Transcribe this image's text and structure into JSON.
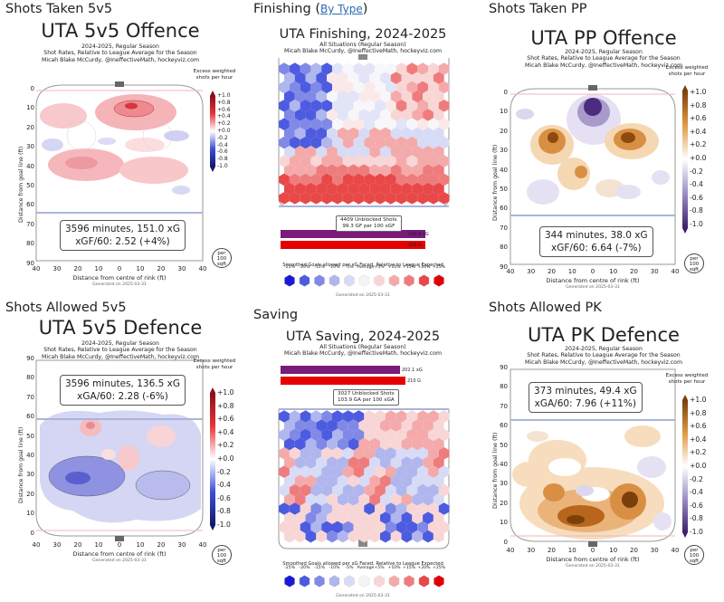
{
  "colors": {
    "offence_red": "#e8333a",
    "defence_blue": "#3b4fd9",
    "pp_brown": "#7a3f0a",
    "pp_purple": "#3d1f6e",
    "rink_line": "#999999",
    "blue_line": "#aab4d8",
    "red_line": "#f2b6bf",
    "link_blue": "#2b6cb0"
  },
  "rink_axes": {
    "x_ticks": [
      "40",
      "30",
      "20",
      "10",
      "0",
      "10",
      "20",
      "30",
      "40"
    ],
    "y_ticks_down": [
      "0",
      "10",
      "20",
      "30",
      "40",
      "50",
      "60",
      "70",
      "80",
      "90"
    ],
    "y_ticks_up": [
      "90",
      "80",
      "70",
      "60",
      "50",
      "40",
      "30",
      "20",
      "10",
      "0"
    ],
    "xlabel": "Distance from centre of rink (ft)",
    "ylabel": "Distance from goal line (ft)",
    "generated": "Generated on 2025-03-31"
  },
  "colorbar": {
    "title": "Excess weighted shots per hour",
    "ticks": [
      "+1.0",
      "+0.8",
      "+0.6",
      "+0.4",
      "+0.2",
      "+0.0",
      "-0.2",
      "-0.4",
      "-0.6",
      "-0.8",
      "-1.0"
    ],
    "per_sqft": [
      "per",
      "100",
      "sqft"
    ]
  },
  "panels": {
    "p1": {
      "section": "Shots Taken 5v5",
      "title": "UTA 5v5 Offence",
      "sub": [
        "2024-2025, Regular Season",
        "Shot Rates, Relative to League Average for the Season",
        "Micah Blake McCurdy, @IneffectiveMath, hockeyviz.com"
      ],
      "stat1": "3596 minutes, 151.0 xG",
      "stat2": "xGF/60: 2.52 (+4%)"
    },
    "p2": {
      "section": "Finishing",
      "section_link": "By Type",
      "title": "UTA Finishing, 2024-2025",
      "sub": [
        "All Situations (Regular Season)",
        "Micah Blake McCurdy, @IneffectiveMath, hockeyviz.com"
      ],
      "stat1": "4409 Unblocked Shots",
      "stat2": "99.3 GF per 100 xGF",
      "bar1_label": "290.9 xG",
      "bar2_label": "289 G",
      "legend_title": "Smoothed Goals allowed per xG Faced, Relative to League Expected",
      "legend_labels": [
        "-25%",
        "-20%",
        "-15%",
        "-10%",
        "-5%",
        "Average",
        "+5%",
        "+10%",
        "+15%",
        "+20%",
        "+25%"
      ],
      "generated": "Generated on 2025-03-31"
    },
    "p3": {
      "section": "Shots Taken PP",
      "title": "UTA PP Offence",
      "sub": [
        "2024-2025, Regular Season",
        "Shot Rates, Relative to League Average for the Season",
        "Micah Blake McCurdy, @IneffectiveMath, hockeyviz.com"
      ],
      "stat1": "344 minutes, 38.0 xG",
      "stat2": "xGF/60: 6.64 (-7%)"
    },
    "p4": {
      "section": "Shots Allowed 5v5",
      "title": "UTA 5v5 Defence",
      "sub": [
        "2024-2025, Regular Season",
        "Shot Rates, Relative to League Average for the Season",
        "Micah Blake McCurdy, @IneffectiveMath, hockeyviz.com"
      ],
      "stat1": "3596 minutes, 136.5 xG",
      "stat2": "xGA/60: 2.28 (-6%)"
    },
    "p5": {
      "section": "Saving",
      "title": "UTA Saving, 2024-2025",
      "sub": [
        "All Situations (Regular Season)",
        "Micah Blake McCurdy, @IneffectiveMath, hockeyviz.com"
      ],
      "stat1": "3027 Unblocked Shots",
      "stat2": "103.9 GA per 100 xGA",
      "bar1_label": "202.1 xG",
      "bar2_label": "210 G",
      "legend_title": "Smoothed Goals allowed per xG Faced, Relative to League Expected",
      "legend_labels": [
        "-25%",
        "-20%",
        "-15%",
        "-10%",
        "-5%",
        "Average",
        "+5%",
        "+10%",
        "+15%",
        "+20%",
        "+25%"
      ],
      "generated": "Generated on 2025-03-31"
    },
    "p6": {
      "section": "Shots Allowed PK",
      "title": "UTA PK Defence",
      "sub": [
        "2024-2025, Regular Season",
        "Shot Rates, Relative to League Average for the Season",
        "Micah Blake McCurdy, @IneffectiveMath, hockeyviz.com"
      ],
      "stat1": "373 minutes, 49.4 xG",
      "stat2": "xGA/60: 7.96 (+11%)"
    }
  },
  "chart_data": [
    {
      "type": "heatmap",
      "title": "UTA 5v5 Offence",
      "xlabel": "Distance from centre of rink (ft)",
      "ylabel": "Distance from goal line (ft)",
      "xlim": [
        -40,
        40
      ],
      "ylim": [
        0,
        90
      ],
      "colorbar_range": [
        -1.0,
        1.0
      ],
      "xG": 151.0,
      "minutes": 3596,
      "rate_per_60": 2.52,
      "relative": "+4%"
    },
    {
      "type": "heatmap",
      "title": "UTA Finishing, 2024-2025",
      "unblocked_shots": 4409,
      "per_100_expected": 99.3,
      "bars": [
        {
          "label": "xG",
          "value": 290.9
        },
        {
          "label": "G",
          "value": 289
        }
      ]
    },
    {
      "type": "heatmap",
      "title": "UTA PP Offence",
      "xlim": [
        -40,
        40
      ],
      "ylim": [
        0,
        90
      ],
      "colorbar_range": [
        -1.0,
        1.0
      ],
      "xG": 38.0,
      "minutes": 344,
      "rate_per_60": 6.64,
      "relative": "-7%"
    },
    {
      "type": "heatmap",
      "title": "UTA 5v5 Defence",
      "xlim": [
        -40,
        40
      ],
      "ylim": [
        0,
        90
      ],
      "colorbar_range": [
        -1.0,
        1.0
      ],
      "xG": 136.5,
      "minutes": 3596,
      "rate_per_60": 2.28,
      "relative": "-6%"
    },
    {
      "type": "heatmap",
      "title": "UTA Saving, 2024-2025",
      "unblocked_shots": 3027,
      "per_100_expected": 103.9,
      "bars": [
        {
          "label": "xG",
          "value": 202.1
        },
        {
          "label": "G",
          "value": 210
        }
      ]
    },
    {
      "type": "heatmap",
      "title": "UTA PK Defence",
      "xlim": [
        -40,
        40
      ],
      "ylim": [
        0,
        90
      ],
      "colorbar_range": [
        -1.0,
        1.0
      ],
      "xG": 49.4,
      "minutes": 373,
      "rate_per_60": 7.96,
      "relative": "+11%"
    }
  ]
}
